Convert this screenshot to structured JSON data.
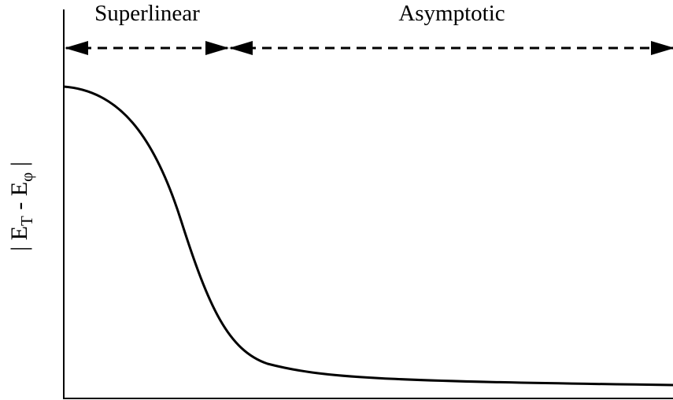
{
  "regions": [
    {
      "label": "Superlinear"
    },
    {
      "label": "Asymptotic"
    }
  ],
  "y_axis": {
    "prefix": "| E",
    "sub1": "T",
    "middle": " - E",
    "sub2": "φ",
    "suffix": " |"
  },
  "curve": {
    "shape": "sigmoid-decay",
    "color": "#000000"
  }
}
